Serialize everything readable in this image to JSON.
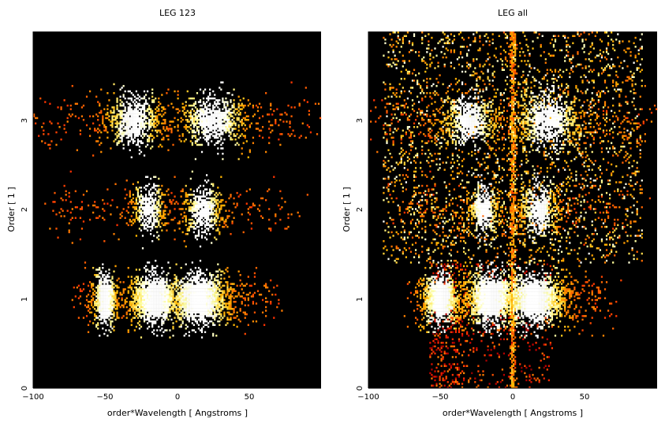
{
  "chart_data": [
    {
      "type": "heatmap",
      "title": "LEG 123",
      "xlabel": "order*Wavelength [ Angstroms ]",
      "ylabel": "Order [ 1 ]",
      "xlim": [
        -100,
        100
      ],
      "ylim": [
        0,
        4
      ],
      "xticks": [
        -100,
        -50,
        0,
        50
      ],
      "yticks": [
        0,
        1,
        2,
        3
      ],
      "xtick_labels": [
        "−100",
        "−50",
        "0",
        "50"
      ],
      "ytick_labels": [
        "0",
        "1",
        "2",
        "3"
      ],
      "colormap": "heat (black-red-orange-yellow-white)",
      "background": "#000000",
      "features": [
        {
          "order": 1,
          "center_x": -50,
          "width": 12,
          "peak": "orange"
        },
        {
          "order": 1,
          "center_x": -15,
          "width": 25,
          "peak": "white"
        },
        {
          "order": 1,
          "center_x": 15,
          "width": 30,
          "peak": "white"
        },
        {
          "order": 2,
          "center_x": -20,
          "width": 15,
          "peak": "white"
        },
        {
          "order": 2,
          "center_x": 18,
          "width": 18,
          "peak": "white"
        },
        {
          "order": 3,
          "center_x": -30,
          "width": 25,
          "peak": "white"
        },
        {
          "order": 3,
          "center_x": 25,
          "width": 30,
          "peak": "white"
        }
      ]
    },
    {
      "type": "heatmap",
      "title": "LEG all",
      "xlabel": "order*Wavelength [ Angstroms ]",
      "ylabel": "Order [ 1 ]",
      "xlim": [
        -100,
        100
      ],
      "ylim": [
        0,
        4
      ],
      "xticks": [
        -100,
        -50,
        0,
        50
      ],
      "yticks": [
        0,
        1,
        2,
        3
      ],
      "xtick_labels": [
        "−100",
        "−50",
        "0",
        "50"
      ],
      "ytick_labels": [
        "0",
        "1",
        "2",
        "3"
      ],
      "colormap": "heat (black-red-orange-yellow-white)",
      "background": "#000000",
      "features": [
        {
          "order": 1,
          "center_x": -50,
          "width": 18,
          "peak": "orange"
        },
        {
          "order": 1,
          "center_x": -15,
          "width": 25,
          "peak": "white"
        },
        {
          "order": 1,
          "center_x": 15,
          "width": 30,
          "peak": "white"
        },
        {
          "order": 2,
          "center_x": -20,
          "width": 15,
          "peak": "white"
        },
        {
          "order": 2,
          "center_x": 18,
          "width": 18,
          "peak": "white"
        },
        {
          "order": 3,
          "center_x": -30,
          "width": 25,
          "peak": "white"
        },
        {
          "order": 3,
          "center_x": 25,
          "width": 30,
          "peak": "white"
        },
        {
          "order": "all",
          "center_x": 0,
          "width": 3,
          "peak": "orange",
          "kind": "zeroth-order streak"
        }
      ]
    }
  ]
}
